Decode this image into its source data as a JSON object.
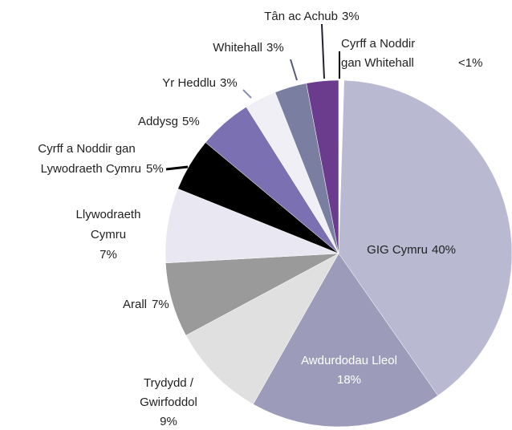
{
  "chart_data": {
    "type": "pie",
    "categories": [
      [
        "Cyrff a Noddir",
        "gan Whitehall"
      ],
      [
        "GIG Cymru"
      ],
      [
        "Awdurdodau Lleol"
      ],
      [
        "Trydydd /",
        "Gwirfoddol"
      ],
      [
        "Arall"
      ],
      [
        "Llywodraeth",
        "Cymru"
      ],
      [
        "Cyrff a Noddir gan",
        "Lywodraeth Cymru"
      ],
      [
        "Addysg"
      ],
      [
        "Yr Heddlu"
      ],
      [
        "Whitehall"
      ],
      [
        "Tân ac Achub"
      ]
    ],
    "values": [
      0.5,
      40,
      18,
      9,
      7,
      7,
      5,
      5,
      3,
      3,
      3
    ],
    "value_labels": [
      "<1%",
      "40%",
      "18%",
      "9%",
      "7%",
      "7%",
      "5%",
      "5%",
      "3%",
      "3%",
      "3%"
    ],
    "colors": [
      "#ffffff",
      "#b9b9d1",
      "#9c9cba",
      "#e0e0e0",
      "#9a9a9a",
      "#e9e7f1",
      "#000000",
      "#7b70b1",
      "#efeff5",
      "#7a7fa1",
      "#6b3b8d"
    ]
  }
}
